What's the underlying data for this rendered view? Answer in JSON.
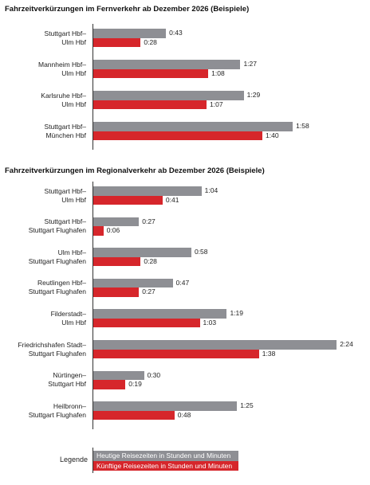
{
  "chart_data": [
    {
      "type": "bar",
      "orientation": "horizontal",
      "title": "Fahrzeitverkürzungen im Fernverkehr ab Dezember 2026 (Beispiele)",
      "categories": [
        "Stuttgart Hbf–\nUlm Hbf",
        "Mannheim Hbf–\nUlm Hbf",
        "Karlsruhe Hbf–\nUlm Hbf",
        "Stuttgart Hbf–\nMünchen Hbf"
      ],
      "series": [
        {
          "name": "Heutige Reisezeiten in Stunden und Minuten",
          "color": "#8e8f94",
          "values": [
            43,
            87,
            89,
            118
          ],
          "value_labels": [
            "0:43",
            "1:27",
            "1:29",
            "1:58"
          ]
        },
        {
          "name": "Künftige Reisezeiten in Stunden und Minuten",
          "color": "#d6262b",
          "values": [
            28,
            68,
            67,
            100
          ],
          "value_labels": [
            "0:28",
            "1:08",
            "1:07",
            "1:40"
          ]
        }
      ]
    },
    {
      "type": "bar",
      "orientation": "horizontal",
      "title": "Fahrzeitverkürzungen im Regionalverkehr ab Dezember 2026 (Beispiele)",
      "categories": [
        "Stuttgart Hbf–\nUlm Hbf",
        "Stuttgart Hbf–\nStuttgart Flughafen",
        "Ulm Hbf–\nStuttgart Flughafen",
        "Reutlingen Hbf–\nStuttgart Flughafen",
        "Filderstadt–\nUlm Hbf",
        "Friedrichshafen Stadt–\nStuttgart Flughafen",
        "Nürtingen–\nStuttgart Hbf",
        "Heilbronn–\nStuttgart Flughafen"
      ],
      "series": [
        {
          "color": "#8e8f94",
          "values": [
            64,
            27,
            58,
            47,
            79,
            144,
            30,
            85
          ],
          "value_labels": [
            "1:04",
            "0:27",
            "0:58",
            "0:47",
            "1:19",
            "2:24",
            "0:30",
            "1:25"
          ]
        },
        {
          "color": "#d6262b",
          "values": [
            41,
            6,
            28,
            27,
            63,
            98,
            19,
            48
          ],
          "value_labels": [
            "0:41",
            "0:06",
            "0:28",
            "0:27",
            "1:03",
            "1:38",
            "0:19",
            "0:48"
          ]
        }
      ]
    }
  ],
  "legend": {
    "title": "Legende"
  }
}
